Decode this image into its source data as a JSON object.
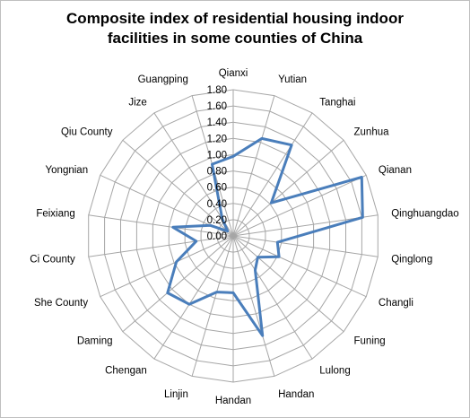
{
  "chart_data": {
    "type": "radar",
    "title_line1": "Composite index of residential housing indoor",
    "title_line2": "facilities in some counties of China",
    "categories": [
      "Qianxi",
      "Yutian",
      "Tanghai",
      "Zunhua",
      "Qianan",
      "Qinghuangdao",
      "Qinglong",
      "Changli",
      "Funing",
      "Lulong",
      "Handan",
      "Handan",
      "Linjin",
      "Chengan",
      "Daming",
      "She County",
      "Ci County",
      "Feixiang",
      "Yongnian",
      "Qiu County",
      "Jize",
      "Guangping"
    ],
    "series": [
      {
        "values": [
          0.98,
          1.25,
          1.33,
          0.62,
          1.74,
          1.61,
          0.55,
          0.62,
          0.4,
          0.5,
          1.28,
          0.7,
          0.72,
          1.0,
          1.07,
          0.77,
          0.46,
          0.75,
          0.31,
          0.09,
          0.25,
          0.92
        ],
        "color": "#4a7ebb"
      }
    ],
    "radial_ticks": [
      "0.00",
      "0.20",
      "0.40",
      "0.60",
      "0.80",
      "1.00",
      "1.20",
      "1.40",
      "1.60",
      "1.80"
    ],
    "rmin": 0,
    "rmax": 1.8,
    "grid": true,
    "legend": "none"
  }
}
